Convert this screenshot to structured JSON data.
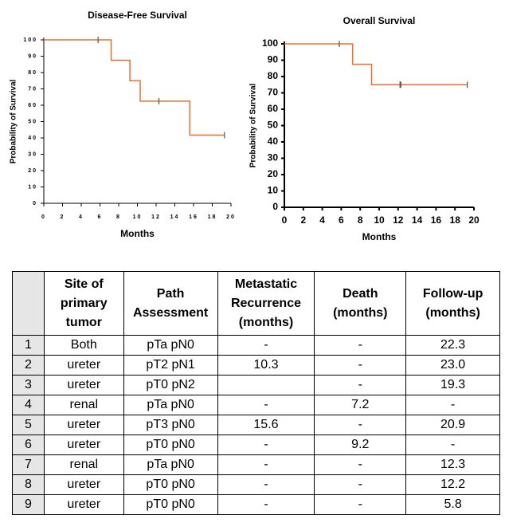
{
  "chart_data": [
    {
      "type": "step",
      "title": "Disease-Free  Survival",
      "x_label": "Months",
      "y_label": "Probability of Survival",
      "x": [
        0,
        7.2,
        9.2,
        10.3,
        15.6,
        19.3
      ],
      "values": [
        100,
        87.5,
        75,
        62.5,
        41.7,
        41.7
      ],
      "censor_x": [
        5.8,
        12.3,
        19.3
      ],
      "censor_values": [
        100,
        62.5,
        41.7
      ],
      "color": "#e8702a",
      "xlim": [
        0,
        20
      ],
      "xticks": [
        0,
        2,
        4,
        6,
        8,
        10,
        12,
        14,
        16,
        18,
        20
      ],
      "ylim": [
        0,
        100
      ],
      "yticks": [
        0,
        10,
        20,
        30,
        40,
        50,
        60,
        70,
        80,
        90,
        100
      ]
    },
    {
      "type": "step",
      "title": "Overall  Survival",
      "x_label": "Months",
      "y_label": "Probability of Survival",
      "x": [
        0,
        7.2,
        9.2,
        19.3
      ],
      "values": [
        100,
        87.5,
        75,
        75
      ],
      "censor_x": [
        5.8,
        12.2,
        12.3,
        19.3
      ],
      "censor_values": [
        100,
        75,
        75,
        75
      ],
      "color": "#e8702a",
      "xlim": [
        0,
        20
      ],
      "xticks": [
        0,
        2,
        4,
        6,
        8,
        10,
        12,
        14,
        16,
        18,
        20
      ],
      "ylim": [
        0,
        100
      ],
      "yticks": [
        0,
        10,
        20,
        30,
        40,
        50,
        60,
        70,
        80,
        90,
        100
      ]
    }
  ],
  "table": {
    "header": [
      null,
      "Site of primary tumor",
      "Path Assessment",
      "Metastatic Recurrence (months)",
      "Death (months)",
      "Follow-up (months)"
    ],
    "rows": [
      [
        "1",
        "Both",
        "pTa pN0",
        "-",
        "-",
        "22.3"
      ],
      [
        "2",
        "ureter",
        "pT2 pN1",
        "10.3",
        "-",
        "23.0"
      ],
      [
        "3",
        "ureter",
        "pT0 pN2",
        null,
        "-",
        "19.3"
      ],
      [
        "4",
        "renal",
        "pTa pN0",
        "-",
        "7.2",
        "-"
      ],
      [
        "5",
        "ureter",
        "pT3 pN0",
        "15.6",
        "-",
        "20.9"
      ],
      [
        "6",
        "ureter",
        "pT0 pN0",
        "-",
        "9.2",
        "-"
      ],
      [
        "7",
        "renal",
        "pTa pN0",
        "-",
        "-",
        "12.3"
      ],
      [
        "8",
        "ureter",
        "pT0 pN0",
        "-",
        "-",
        "12.2"
      ],
      [
        "9",
        "ureter",
        "pT0 pN0",
        "-",
        "-",
        "5.8"
      ]
    ]
  }
}
